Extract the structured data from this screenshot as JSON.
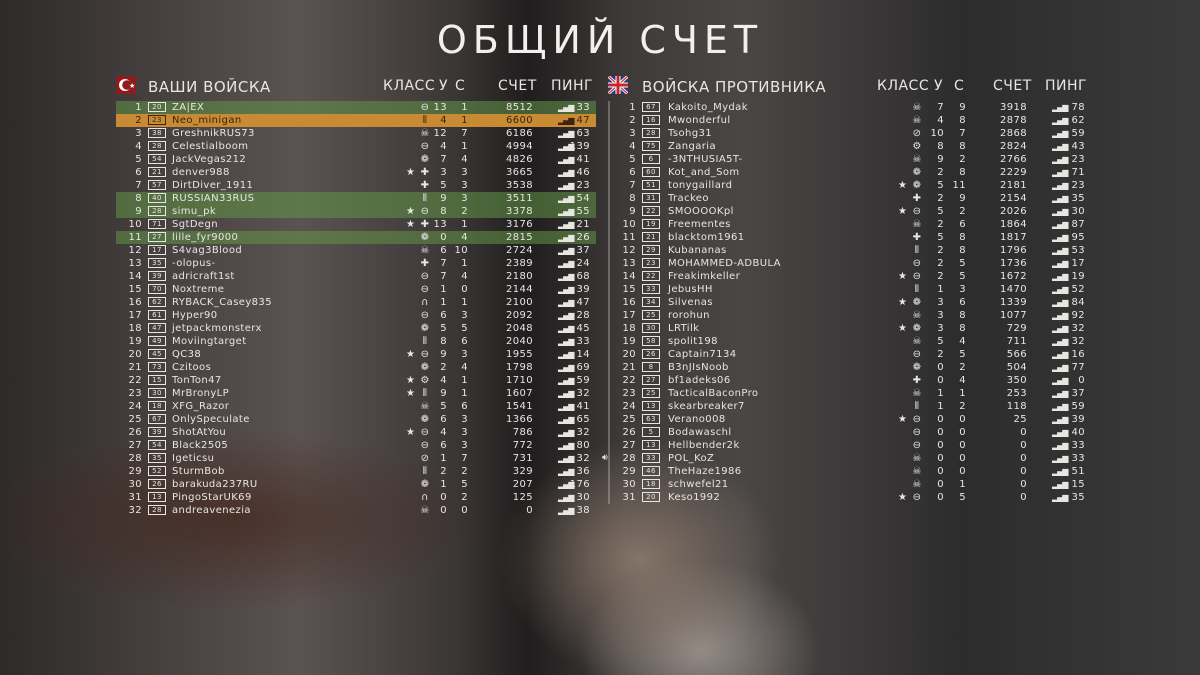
{
  "title": "ОБЩИЙ СЧЕТ",
  "columns": {
    "class": "КЛАСС",
    "kills": "У",
    "deaths": "С",
    "score": "СЧЕТ",
    "ping": "ПИНГ"
  },
  "colors": {
    "highlight_green": "#5f9646",
    "highlight_self": "#c88a33",
    "text": "#e8e6e2"
  },
  "class_icons": {
    "tank": "⊖",
    "medic": "✚",
    "skull": "☠",
    "ammo": "⦀",
    "bug": "❁",
    "headset": "∩",
    "no": "⊘",
    "gear": "⚙"
  },
  "friendly": {
    "label": "ВАШИ ВОЙСКА",
    "flag": "ottoman-crescent-flag",
    "rows": [
      {
        "rank": "1",
        "lvl": "20",
        "name": "ZA|EX",
        "cls": "tank",
        "star": false,
        "k": "13",
        "d": "1",
        "score": "8512",
        "ping": "33",
        "hl": "green"
      },
      {
        "rank": "2",
        "lvl": "23",
        "name": "Neo_minigan",
        "cls": "ammo",
        "star": false,
        "k": "4",
        "d": "1",
        "score": "6600",
        "ping": "47",
        "hl": "orange"
      },
      {
        "rank": "3",
        "lvl": "38",
        "name": "GreshnikRUS73",
        "cls": "skull",
        "star": false,
        "k": "12",
        "d": "7",
        "score": "6186",
        "ping": "63"
      },
      {
        "rank": "4",
        "lvl": "28",
        "name": "Celestialboom",
        "cls": "tank",
        "star": false,
        "k": "4",
        "d": "1",
        "score": "4994",
        "ping": "139"
      },
      {
        "rank": "5",
        "lvl": "54",
        "name": "JackVegas212",
        "cls": "bug",
        "star": false,
        "k": "7",
        "d": "4",
        "score": "4826",
        "ping": "41"
      },
      {
        "rank": "6",
        "lvl": "21",
        "name": "denver988",
        "cls": "medic",
        "star": true,
        "k": "3",
        "d": "3",
        "score": "3665",
        "ping": "46"
      },
      {
        "rank": "7",
        "lvl": "57",
        "name": "DirtDiver_1911",
        "cls": "medic",
        "star": false,
        "k": "5",
        "d": "3",
        "score": "3538",
        "ping": "23"
      },
      {
        "rank": "8",
        "lvl": "40",
        "name": "RUSSIAN33RUS",
        "cls": "ammo",
        "star": false,
        "k": "9",
        "d": "3",
        "score": "3511",
        "ping": "54",
        "hl": "green"
      },
      {
        "rank": "9",
        "lvl": "28",
        "name": "simu_pk",
        "cls": "tank",
        "star": true,
        "k": "8",
        "d": "2",
        "score": "3378",
        "ping": "55",
        "hl": "green"
      },
      {
        "rank": "10",
        "lvl": "71",
        "name": "SgtDegn",
        "cls": "medic",
        "star": true,
        "k": "13",
        "d": "1",
        "score": "3176",
        "ping": "21"
      },
      {
        "rank": "11",
        "lvl": "27",
        "name": "lille_fyr9000",
        "cls": "bug",
        "star": false,
        "k": "0",
        "d": "4",
        "score": "2815",
        "ping": "26",
        "hl": "green"
      },
      {
        "rank": "12",
        "lvl": "17",
        "name": "S4vag3Blood",
        "cls": "skull",
        "star": false,
        "k": "6",
        "d": "10",
        "score": "2724",
        "ping": "37"
      },
      {
        "rank": "13",
        "lvl": "35",
        "name": "-olopus-",
        "cls": "medic",
        "star": false,
        "k": "7",
        "d": "1",
        "score": "2389",
        "ping": "24"
      },
      {
        "rank": "14",
        "lvl": "39",
        "name": "adricraft1st",
        "cls": "tank",
        "star": false,
        "k": "7",
        "d": "4",
        "score": "2180",
        "ping": "68"
      },
      {
        "rank": "15",
        "lvl": "70",
        "name": "Noxtreme",
        "cls": "tank",
        "star": false,
        "k": "1",
        "d": "0",
        "score": "2144",
        "ping": "39"
      },
      {
        "rank": "16",
        "lvl": "62",
        "name": "RYBACK_Casey835",
        "cls": "headset",
        "star": false,
        "k": "1",
        "d": "1",
        "score": "2100",
        "ping": "47"
      },
      {
        "rank": "17",
        "lvl": "61",
        "name": "Hyper90",
        "cls": "tank",
        "star": false,
        "k": "6",
        "d": "3",
        "score": "2092",
        "ping": "28"
      },
      {
        "rank": "18",
        "lvl": "47",
        "name": "jetpackmonsterx",
        "cls": "bug",
        "star": false,
        "k": "5",
        "d": "5",
        "score": "2048",
        "ping": "45"
      },
      {
        "rank": "19",
        "lvl": "49",
        "name": "Moviingtarget",
        "cls": "ammo",
        "star": false,
        "k": "8",
        "d": "6",
        "score": "2040",
        "ping": "33"
      },
      {
        "rank": "20",
        "lvl": "45",
        "name": "QC38",
        "cls": "tank",
        "star": true,
        "k": "9",
        "d": "3",
        "score": "1955",
        "ping": "14"
      },
      {
        "rank": "21",
        "lvl": "73",
        "name": "Czitoos",
        "cls": "bug",
        "star": false,
        "k": "2",
        "d": "4",
        "score": "1798",
        "ping": "69"
      },
      {
        "rank": "22",
        "lvl": "15",
        "name": "TonTon47",
        "cls": "gear",
        "star": true,
        "k": "4",
        "d": "1",
        "score": "1710",
        "ping": "59"
      },
      {
        "rank": "23",
        "lvl": "30",
        "name": "MrBronyLP",
        "cls": "ammo",
        "star": true,
        "k": "9",
        "d": "1",
        "score": "1607",
        "ping": "32"
      },
      {
        "rank": "24",
        "lvl": "18",
        "name": "XFG_Razor",
        "cls": "skull",
        "star": false,
        "k": "5",
        "d": "6",
        "score": "1541",
        "ping": "41"
      },
      {
        "rank": "25",
        "lvl": "67",
        "name": "OnlySpeculate",
        "cls": "bug",
        "star": false,
        "k": "6",
        "d": "3",
        "score": "1366",
        "ping": "65"
      },
      {
        "rank": "26",
        "lvl": "39",
        "name": "ShotAtYou",
        "cls": "tank",
        "star": true,
        "k": "4",
        "d": "3",
        "score": "786",
        "ping": "32"
      },
      {
        "rank": "27",
        "lvl": "54",
        "name": "Black2505",
        "cls": "tank",
        "star": false,
        "k": "6",
        "d": "3",
        "score": "772",
        "ping": "80"
      },
      {
        "rank": "28",
        "lvl": "35",
        "name": "Igeticsu",
        "cls": "no",
        "star": false,
        "k": "1",
        "d": "7",
        "score": "731",
        "ping": "32"
      },
      {
        "rank": "29",
        "lvl": "52",
        "name": "SturmBob",
        "cls": "ammo",
        "star": false,
        "k": "2",
        "d": "2",
        "score": "329",
        "ping": "36"
      },
      {
        "rank": "30",
        "lvl": "26",
        "name": "barakuda237RU",
        "cls": "bug",
        "star": false,
        "k": "1",
        "d": "5",
        "score": "207",
        "ping": "176"
      },
      {
        "rank": "31",
        "lvl": "13",
        "name": "PingoStarUK69",
        "cls": "headset",
        "star": false,
        "k": "0",
        "d": "2",
        "score": "125",
        "ping": "30"
      },
      {
        "rank": "32",
        "lvl": "28",
        "name": "andreavenezia",
        "cls": "skull",
        "star": false,
        "k": "0",
        "d": "0",
        "score": "0",
        "ping": "38"
      }
    ]
  },
  "enemy": {
    "label": "ВОЙСКА ПРОТИВНИКА",
    "flag": "uk-flag",
    "rows": [
      {
        "rank": "1",
        "lvl": "67",
        "name": "Kakoito_Mydak",
        "cls": "skull",
        "star": false,
        "k": "7",
        "d": "9",
        "score": "3918",
        "ping": "78"
      },
      {
        "rank": "2",
        "lvl": "16",
        "name": "Mwonderful",
        "cls": "skull",
        "star": false,
        "k": "4",
        "d": "8",
        "score": "2878",
        "ping": "62"
      },
      {
        "rank": "3",
        "lvl": "28",
        "name": "Tsohg31",
        "cls": "no",
        "star": false,
        "k": "10",
        "d": "7",
        "score": "2868",
        "ping": "59"
      },
      {
        "rank": "4",
        "lvl": "75",
        "name": "Zangaria",
        "cls": "gear",
        "star": false,
        "k": "8",
        "d": "8",
        "score": "2824",
        "ping": "43"
      },
      {
        "rank": "5",
        "lvl": "6",
        "name": "-3NTHUSIA5T-",
        "cls": "skull",
        "star": false,
        "k": "9",
        "d": "2",
        "score": "2766",
        "ping": "23"
      },
      {
        "rank": "6",
        "lvl": "60",
        "name": "Kot_and_Som",
        "cls": "bug",
        "star": false,
        "k": "2",
        "d": "8",
        "score": "2229",
        "ping": "71"
      },
      {
        "rank": "7",
        "lvl": "51",
        "name": "tonygaillard",
        "cls": "bug",
        "star": true,
        "k": "5",
        "d": "11",
        "score": "2181",
        "ping": "23"
      },
      {
        "rank": "8",
        "lvl": "31",
        "name": "Trackeo",
        "cls": "medic",
        "star": false,
        "k": "2",
        "d": "9",
        "score": "2154",
        "ping": "35"
      },
      {
        "rank": "9",
        "lvl": "22",
        "name": "SMOOOOKpl",
        "cls": "tank",
        "star": true,
        "k": "5",
        "d": "2",
        "score": "2026",
        "ping": "30"
      },
      {
        "rank": "10",
        "lvl": "19",
        "name": "Freementes",
        "cls": "skull",
        "star": false,
        "k": "2",
        "d": "6",
        "score": "1864",
        "ping": "87"
      },
      {
        "rank": "11",
        "lvl": "21",
        "name": "blacktom1961",
        "cls": "medic",
        "star": false,
        "k": "5",
        "d": "8",
        "score": "1817",
        "ping": "95"
      },
      {
        "rank": "12",
        "lvl": "29",
        "name": "Kubananas",
        "cls": "ammo",
        "star": false,
        "k": "2",
        "d": "8",
        "score": "1796",
        "ping": "53"
      },
      {
        "rank": "13",
        "lvl": "23",
        "name": "MOHAMMED-ADBULA",
        "cls": "tank",
        "star": false,
        "k": "2",
        "d": "5",
        "score": "1736",
        "ping": "17"
      },
      {
        "rank": "14",
        "lvl": "22",
        "name": "Freakimkeller",
        "cls": "tank",
        "star": true,
        "k": "2",
        "d": "5",
        "score": "1672",
        "ping": "19"
      },
      {
        "rank": "15",
        "lvl": "33",
        "name": "JebusHH",
        "cls": "ammo",
        "star": false,
        "k": "1",
        "d": "3",
        "score": "1470",
        "ping": "52"
      },
      {
        "rank": "16",
        "lvl": "34",
        "name": "Silvenas",
        "cls": "bug",
        "star": true,
        "k": "3",
        "d": "6",
        "score": "1339",
        "ping": "84"
      },
      {
        "rank": "17",
        "lvl": "25",
        "name": "rorohun",
        "cls": "skull",
        "star": false,
        "k": "3",
        "d": "8",
        "score": "1077",
        "ping": "92"
      },
      {
        "rank": "18",
        "lvl": "30",
        "name": "LRTilk",
        "cls": "bug",
        "star": true,
        "k": "3",
        "d": "8",
        "score": "729",
        "ping": "32"
      },
      {
        "rank": "19",
        "lvl": "58",
        "name": "spolit198",
        "cls": "skull",
        "star": false,
        "k": "5",
        "d": "4",
        "score": "711",
        "ping": "32"
      },
      {
        "rank": "20",
        "lvl": "26",
        "name": "Captain7134",
        "cls": "tank",
        "star": false,
        "k": "2",
        "d": "5",
        "score": "566",
        "ping": "16"
      },
      {
        "rank": "21",
        "lvl": "8",
        "name": "B3nJIsNoob",
        "cls": "bug",
        "star": false,
        "k": "0",
        "d": "2",
        "score": "504",
        "ping": "77"
      },
      {
        "rank": "22",
        "lvl": "27",
        "name": "bf1adeks06",
        "cls": "medic",
        "star": false,
        "k": "0",
        "d": "4",
        "score": "350",
        "ping": "0"
      },
      {
        "rank": "23",
        "lvl": "25",
        "name": "TacticalBaconPro",
        "cls": "skull",
        "star": false,
        "k": "1",
        "d": "1",
        "score": "253",
        "ping": "37"
      },
      {
        "rank": "24",
        "lvl": "13",
        "name": "skearbreaker7",
        "cls": "ammo",
        "star": false,
        "k": "1",
        "d": "2",
        "score": "118",
        "ping": "59"
      },
      {
        "rank": "25",
        "lvl": "63",
        "name": "Verano008",
        "cls": "tank",
        "star": true,
        "k": "0",
        "d": "0",
        "score": "25",
        "ping": "39"
      },
      {
        "rank": "26",
        "lvl": "5",
        "name": "Bodawaschl",
        "cls": "tank",
        "star": false,
        "k": "0",
        "d": "0",
        "score": "0",
        "ping": "40"
      },
      {
        "rank": "27",
        "lvl": "13",
        "name": "Hellbender2k",
        "cls": "tank",
        "star": false,
        "k": "0",
        "d": "0",
        "score": "0",
        "ping": "33"
      },
      {
        "rank": "28",
        "lvl": "33",
        "name": "POL_KoZ",
        "cls": "skull",
        "star": false,
        "k": "0",
        "d": "0",
        "score": "0",
        "ping": "33",
        "speaking": true
      },
      {
        "rank": "29",
        "lvl": "46",
        "name": "TheHaze1986",
        "cls": "skull",
        "star": false,
        "k": "0",
        "d": "0",
        "score": "0",
        "ping": "51"
      },
      {
        "rank": "30",
        "lvl": "18",
        "name": "schwefel21",
        "cls": "skull",
        "star": false,
        "k": "0",
        "d": "1",
        "score": "0",
        "ping": "15"
      },
      {
        "rank": "31",
        "lvl": "20",
        "name": "Keso1992",
        "cls": "tank",
        "star": true,
        "k": "0",
        "d": "5",
        "score": "0",
        "ping": "35"
      }
    ]
  }
}
